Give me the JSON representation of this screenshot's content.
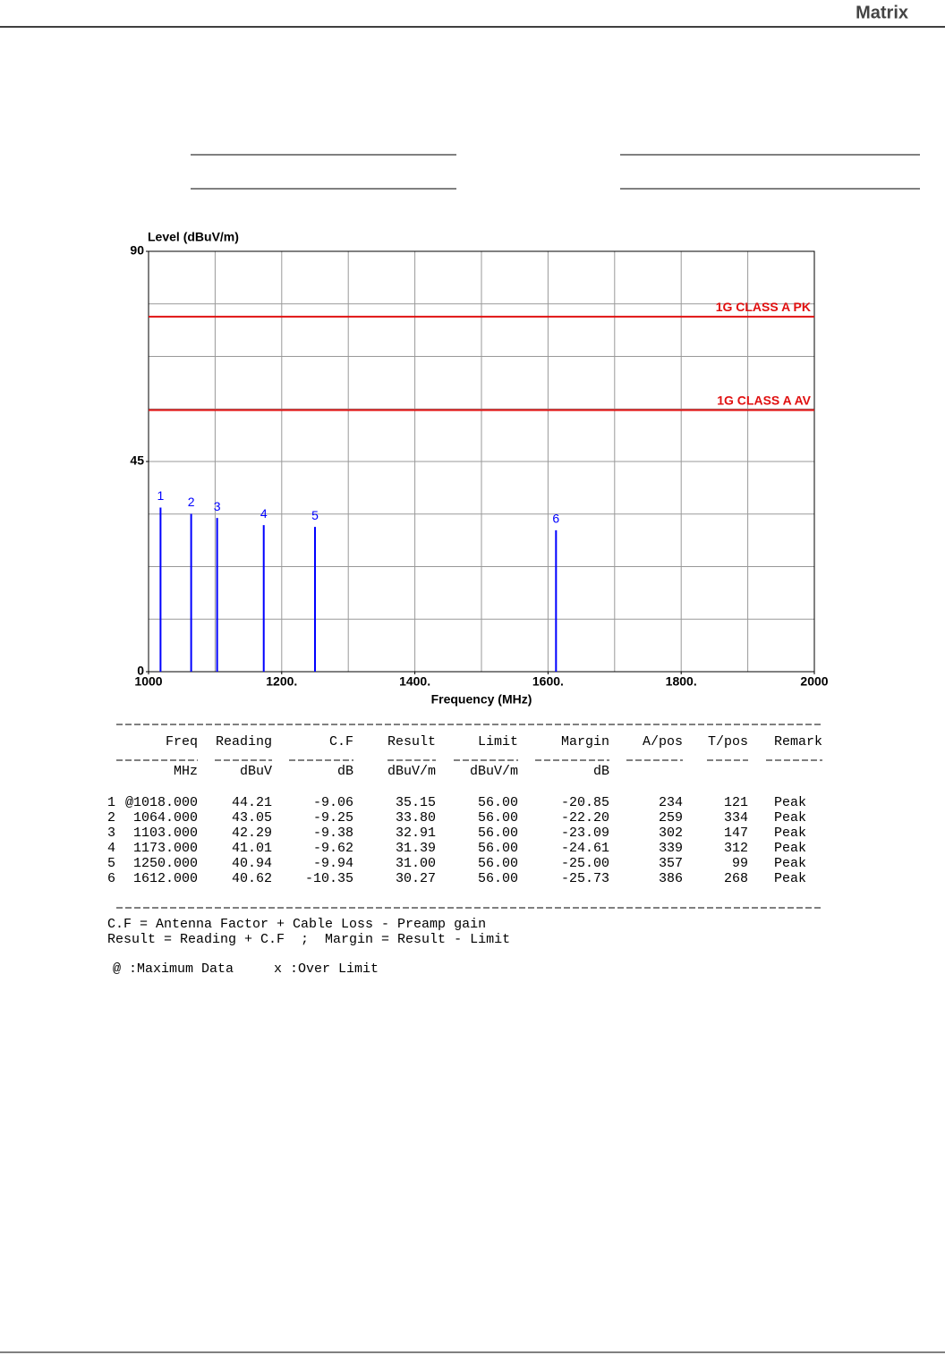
{
  "header": {
    "logo": "Matrix"
  },
  "chart_data": {
    "type": "stem",
    "y_label": "Level (dBuV/m)",
    "x_label": "Frequency (MHz)",
    "x": [
      1018,
      1064,
      1103,
      1173,
      1250,
      1612
    ],
    "values": [
      35.15,
      33.8,
      32.91,
      31.39,
      31.0,
      30.27
    ],
    "point_labels": [
      "1",
      "2",
      "3",
      "4",
      "5",
      "6"
    ],
    "color": "#0000ff",
    "xlim": [
      1000,
      2000
    ],
    "ylim": [
      0,
      90
    ],
    "xticks": [
      1000,
      {
        "value": 1200,
        "label": "1200."
      },
      {
        "value": 1400,
        "label": "1400."
      },
      {
        "value": 1600,
        "label": "1600."
      },
      {
        "value": 1800,
        "label": "1800."
      },
      2000
    ],
    "yticks": [
      0,
      45,
      90
    ],
    "grid": true,
    "x_grid_divisions": 10,
    "y_grid_divisions": 8,
    "limit_lines": [
      {
        "name": "1G CLASS A PK",
        "value": 76,
        "color": "#e01010"
      },
      {
        "name": "1G CLASS A AV",
        "value": 56,
        "color": "#e01010"
      }
    ]
  },
  "table": {
    "columns": [
      "Freq",
      "Reading",
      "C.F",
      "Result",
      "Limit",
      "Margin",
      "A/pos",
      "T/pos",
      "Remark"
    ],
    "units": [
      "MHz",
      "dBuV",
      "dB",
      "dBuV/m",
      "dBuV/m",
      "dB"
    ],
    "rows": [
      [
        "1",
        "@1018.000",
        "44.21",
        "-9.06",
        "35.15",
        "56.00",
        "-20.85",
        "234",
        "121",
        "Peak"
      ],
      [
        "2",
        "1064.000",
        "43.05",
        "-9.25",
        "33.80",
        "56.00",
        "-22.20",
        "259",
        "334",
        "Peak"
      ],
      [
        "3",
        "1103.000",
        "42.29",
        "-9.38",
        "32.91",
        "56.00",
        "-23.09",
        "302",
        "147",
        "Peak"
      ],
      [
        "4",
        "1173.000",
        "41.01",
        "-9.62",
        "31.39",
        "56.00",
        "-24.61",
        "339",
        "312",
        "Peak"
      ],
      [
        "5",
        "1250.000",
        "40.94",
        "-9.94",
        "31.00",
        "56.00",
        "-25.00",
        "357",
        "99",
        "Peak"
      ],
      [
        "6",
        "1612.000",
        "40.62",
        "-10.35",
        "30.27",
        "56.00",
        "-25.73",
        "386",
        "268",
        "Peak"
      ]
    ]
  },
  "notes": [
    "C.F = Antenna Factor + Cable Loss - Preamp gain",
    "Result = Reading + C.F  ;  Margin = Result - Limit",
    "@ :Maximum Data     x :Over Limit"
  ]
}
